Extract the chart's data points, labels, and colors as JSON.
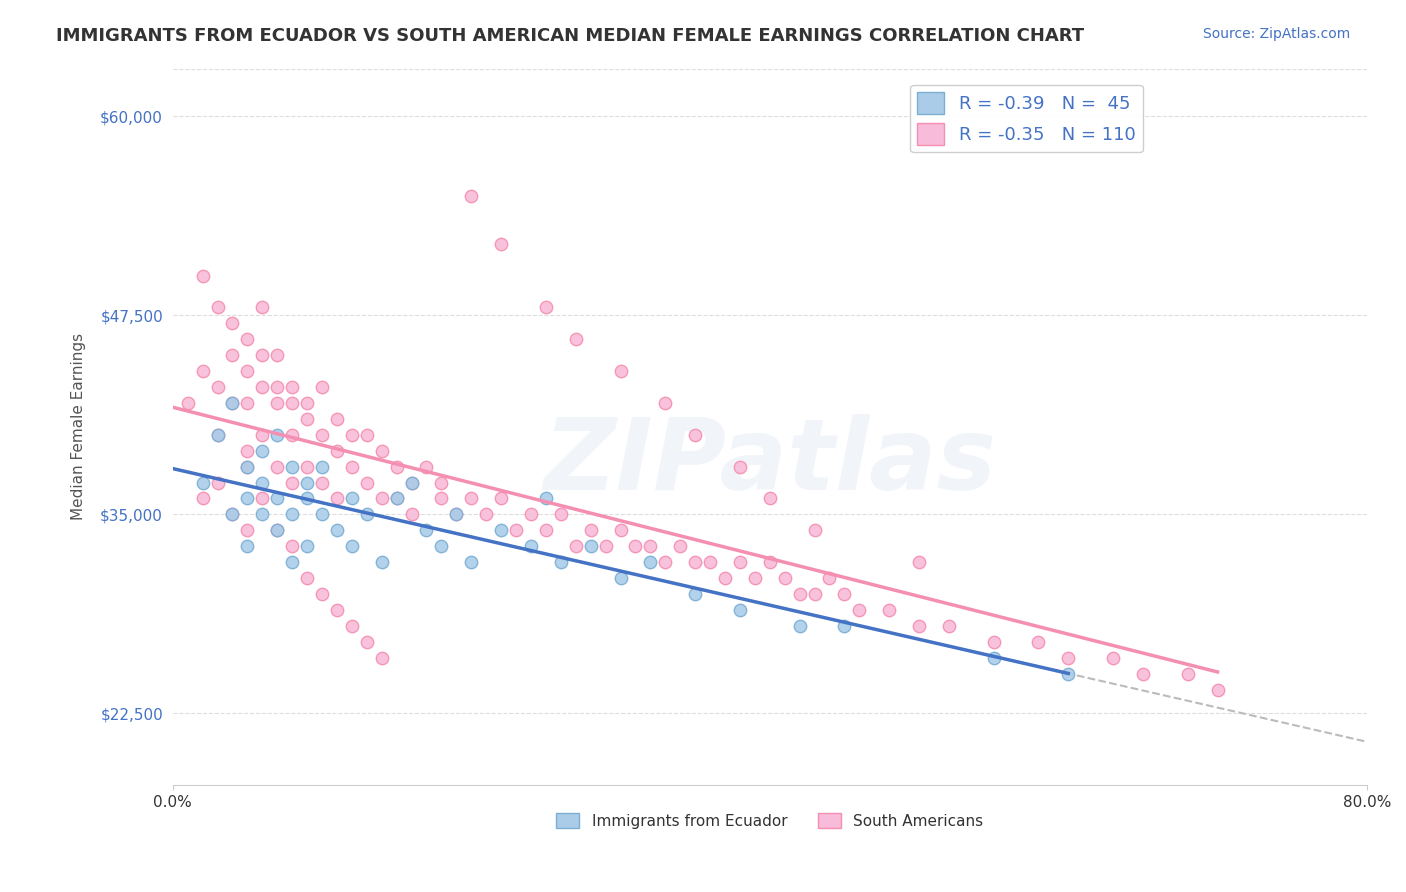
{
  "title": "IMMIGRANTS FROM ECUADOR VS SOUTH AMERICAN MEDIAN FEMALE EARNINGS CORRELATION CHART",
  "source": "Source: ZipAtlas.com",
  "xlabel": "",
  "ylabel": "Median Female Earnings",
  "xlim": [
    0.0,
    0.8
  ],
  "ylim": [
    18000,
    63000
  ],
  "yticks": [
    22500,
    35000,
    47500,
    60000
  ],
  "ytick_labels": [
    "$22,500",
    "$35,000",
    "$47,500",
    "$60,000"
  ],
  "xticks": [
    0.0,
    0.8
  ],
  "xtick_labels": [
    "0.0%",
    "80.0%"
  ],
  "ecuador_color": "#7BAFD4",
  "ecuador_scatter_color": "#AACCE8",
  "south_american_color": "#F48FB1",
  "south_american_scatter_color": "#F8BBD9",
  "dashed_line_color": "#BBBBBB",
  "R_ecuador": -0.39,
  "N_ecuador": 45,
  "R_south_american": -0.35,
  "N_south_american": 110,
  "legend_label_ecuador": "Immigrants from Ecuador",
  "legend_label_south_american": "South Americans",
  "watermark": "ZIPatlas",
  "background_color": "#FFFFFF",
  "grid_color": "#DDDDDD",
  "title_color": "#333333",
  "axis_label_color": "#555555",
  "ytick_color": "#4472C4",
  "legend_text_color": "#4472C4",
  "ecuador_points_x": [
    0.02,
    0.03,
    0.04,
    0.04,
    0.05,
    0.05,
    0.05,
    0.06,
    0.06,
    0.06,
    0.07,
    0.07,
    0.07,
    0.08,
    0.08,
    0.08,
    0.09,
    0.09,
    0.09,
    0.1,
    0.1,
    0.11,
    0.12,
    0.12,
    0.13,
    0.14,
    0.15,
    0.16,
    0.17,
    0.18,
    0.19,
    0.2,
    0.22,
    0.24,
    0.25,
    0.26,
    0.28,
    0.3,
    0.32,
    0.35,
    0.38,
    0.42,
    0.45,
    0.55,
    0.6
  ],
  "ecuador_points_y": [
    37000,
    40000,
    42000,
    35000,
    38000,
    36000,
    33000,
    39000,
    37000,
    35000,
    40000,
    36000,
    34000,
    38000,
    35000,
    32000,
    37000,
    36000,
    33000,
    35000,
    38000,
    34000,
    36000,
    33000,
    35000,
    32000,
    36000,
    37000,
    34000,
    33000,
    35000,
    32000,
    34000,
    33000,
    36000,
    32000,
    33000,
    31000,
    32000,
    30000,
    29000,
    28000,
    28000,
    26000,
    25000
  ],
  "south_american_points_x": [
    0.01,
    0.02,
    0.02,
    0.03,
    0.03,
    0.03,
    0.04,
    0.04,
    0.04,
    0.05,
    0.05,
    0.05,
    0.05,
    0.06,
    0.06,
    0.06,
    0.06,
    0.07,
    0.07,
    0.07,
    0.07,
    0.08,
    0.08,
    0.08,
    0.08,
    0.09,
    0.09,
    0.09,
    0.1,
    0.1,
    0.1,
    0.11,
    0.11,
    0.11,
    0.12,
    0.12,
    0.13,
    0.13,
    0.14,
    0.14,
    0.15,
    0.15,
    0.16,
    0.16,
    0.17,
    0.18,
    0.18,
    0.19,
    0.2,
    0.21,
    0.22,
    0.23,
    0.24,
    0.25,
    0.26,
    0.27,
    0.28,
    0.29,
    0.3,
    0.31,
    0.32,
    0.33,
    0.34,
    0.35,
    0.36,
    0.37,
    0.38,
    0.39,
    0.4,
    0.41,
    0.42,
    0.43,
    0.44,
    0.45,
    0.46,
    0.48,
    0.5,
    0.52,
    0.55,
    0.58,
    0.6,
    0.63,
    0.65,
    0.68,
    0.7,
    0.02,
    0.03,
    0.04,
    0.05,
    0.05,
    0.06,
    0.07,
    0.08,
    0.09,
    0.1,
    0.11,
    0.12,
    0.13,
    0.14,
    0.2,
    0.22,
    0.25,
    0.27,
    0.3,
    0.33,
    0.35,
    0.38,
    0.4,
    0.43,
    0.5
  ],
  "south_american_points_y": [
    42000,
    50000,
    44000,
    48000,
    43000,
    40000,
    47000,
    45000,
    42000,
    46000,
    44000,
    42000,
    38000,
    48000,
    45000,
    43000,
    40000,
    45000,
    43000,
    42000,
    38000,
    43000,
    42000,
    40000,
    37000,
    42000,
    41000,
    38000,
    43000,
    40000,
    37000,
    41000,
    39000,
    36000,
    40000,
    38000,
    40000,
    37000,
    39000,
    36000,
    38000,
    36000,
    37000,
    35000,
    38000,
    36000,
    37000,
    35000,
    36000,
    35000,
    36000,
    34000,
    35000,
    34000,
    35000,
    33000,
    34000,
    33000,
    34000,
    33000,
    33000,
    32000,
    33000,
    32000,
    32000,
    31000,
    32000,
    31000,
    32000,
    31000,
    30000,
    30000,
    31000,
    30000,
    29000,
    29000,
    28000,
    28000,
    27000,
    27000,
    26000,
    26000,
    25000,
    25000,
    24000,
    36000,
    37000,
    35000,
    34000,
    39000,
    36000,
    34000,
    33000,
    31000,
    30000,
    29000,
    28000,
    27000,
    26000,
    55000,
    52000,
    48000,
    46000,
    44000,
    42000,
    40000,
    38000,
    36000,
    34000,
    32000
  ]
}
